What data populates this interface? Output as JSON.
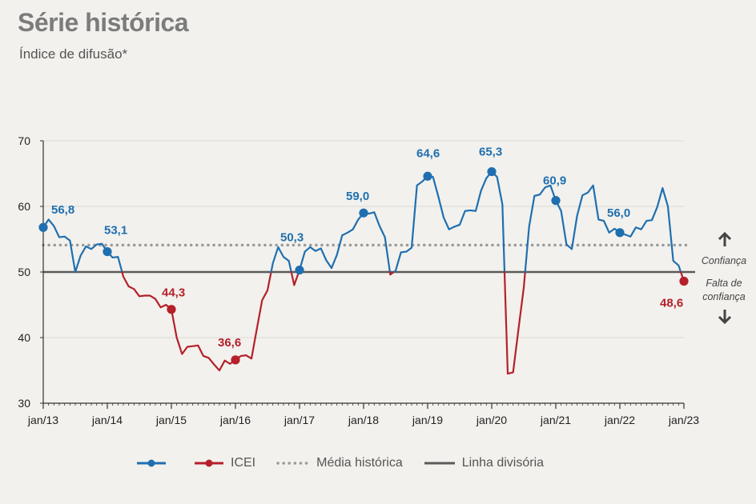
{
  "header": {
    "title": "Série histórica",
    "subtitle": "Índice de difusão*"
  },
  "side_labels": {
    "confidence": "Confiança",
    "no_confidence_line1": "Falta de",
    "no_confidence_line2": "confiança"
  },
  "legend": {
    "icei_blue_label": "",
    "icei_red_label": "ICEI",
    "historical_mean_label": "Média histórica",
    "dividing_line_label": "Linha divisória"
  },
  "colors": {
    "above": "#1f6fb0",
    "below": "#b5202a",
    "mean": "#9a9a9a",
    "divider": "#5a5a5a",
    "axis": "#333333"
  },
  "chart_data": {
    "type": "line",
    "title": "Série histórica",
    "subtitle": "Índice de difusão*",
    "ylim": [
      30,
      70
    ],
    "yticks": [
      30,
      40,
      50,
      60,
      70
    ],
    "x_tick_labels": [
      "jan/13",
      "jan/14",
      "jan/15",
      "jan/16",
      "jan/17",
      "jan/18",
      "jan/19",
      "jan/20",
      "jan/21",
      "jan/22",
      "jan/23"
    ],
    "historical_mean": 54.1,
    "dividing_line": 50,
    "series": [
      {
        "name": "ICEI",
        "start": "jan/13",
        "frequency": "monthly",
        "values": [
          56.8,
          58.0,
          57.0,
          55.3,
          55.4,
          54.8,
          50.0,
          52.5,
          53.9,
          53.5,
          54.2,
          54.3,
          53.1,
          52.2,
          52.3,
          49.3,
          47.8,
          47.4,
          46.3,
          46.4,
          46.4,
          45.9,
          44.6,
          45.0,
          44.3,
          40.0,
          37.5,
          38.6,
          38.7,
          38.8,
          37.2,
          36.9,
          35.9,
          35.0,
          36.5,
          36.0,
          36.6,
          37.2,
          37.3,
          36.8,
          41.3,
          45.7,
          47.2,
          51.3,
          53.8,
          52.3,
          51.7,
          48.0,
          50.3,
          53.1,
          53.8,
          53.2,
          53.6,
          51.8,
          50.6,
          52.6,
          55.6,
          56.0,
          56.5,
          58.0,
          59.0,
          58.9,
          59.1,
          57.0,
          55.3,
          49.6,
          50.2,
          53.0,
          53.1,
          53.7,
          63.2,
          63.8,
          64.6,
          64.5,
          61.5,
          58.3,
          56.5,
          56.9,
          57.2,
          59.3,
          59.4,
          59.3,
          62.4,
          64.3,
          65.3,
          64.5,
          60.3,
          34.5,
          34.7,
          41.2,
          47.6,
          56.9,
          61.6,
          61.8,
          62.9,
          63.2,
          60.9,
          59.3,
          54.2,
          53.5,
          58.6,
          61.7,
          62.1,
          63.2,
          58.0,
          57.8,
          56.0,
          56.6,
          56.0,
          55.7,
          55.4,
          56.8,
          56.5,
          57.8,
          57.9,
          59.9,
          62.8,
          60.0,
          51.7,
          51.0,
          48.6
        ]
      }
    ],
    "annotations": [
      {
        "x": "jan/13",
        "y": 56.8,
        "text": "56,8"
      },
      {
        "x": "jan/14",
        "y": 53.1,
        "text": "53,1"
      },
      {
        "x": "jan/15",
        "y": 44.3,
        "text": "44,3"
      },
      {
        "x": "jan/16",
        "y": 36.6,
        "text": "36,6"
      },
      {
        "x": "jan/17",
        "y": 50.3,
        "text": "50,3"
      },
      {
        "x": "jan/18",
        "y": 59.0,
        "text": "59,0"
      },
      {
        "x": "jan/19",
        "y": 64.6,
        "text": "64,6"
      },
      {
        "x": "jan/20",
        "y": 65.3,
        "text": "65,3"
      },
      {
        "x": "jan/21",
        "y": 60.9,
        "text": "60,9"
      },
      {
        "x": "jan/22",
        "y": 56.0,
        "text": "56,0"
      },
      {
        "x": "jan/23",
        "y": 48.6,
        "text": "48,6"
      }
    ]
  }
}
